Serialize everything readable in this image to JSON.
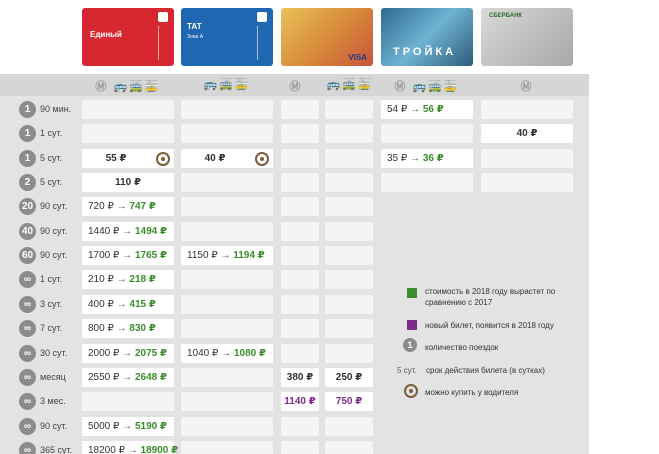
{
  "cards": [
    {
      "name": "Единый",
      "color": "#d62830"
    },
    {
      "name": "ТАТ",
      "sub": "Зона А",
      "color": "#1f67b1"
    },
    {
      "name": "VISA",
      "color": "#e4b23a"
    },
    {
      "name": "ТРОЙКА",
      "color": "#4a8fbf"
    },
    {
      "name": "СБЕРБАНК",
      "color": "#bdbdbd"
    }
  ],
  "header": {
    "col1": "Ⓜ 🚌🚎🚋",
    "col2": "🚌🚎🚋",
    "col3": "Ⓜ",
    "col4": "🚌🚎🚋",
    "col5": "Ⓜ 🚌🚎🚋",
    "col6": "Ⓜ"
  },
  "rows": [
    {
      "trips": "1",
      "period": "90 мин.",
      "c5_old": "54 ₽",
      "c5_new": "56 ₽"
    },
    {
      "trips": "1",
      "period": "1 сут.",
      "c6": "40 ₽"
    },
    {
      "trips": "1",
      "period": "5 сут.",
      "c1": "55 ₽",
      "c2": "40 ₽",
      "c5_old": "35 ₽",
      "c5_new": "36 ₽"
    },
    {
      "trips": "2",
      "period": "5 сут.",
      "c1": "110 ₽"
    },
    {
      "trips": "20",
      "period": "90 сут.",
      "c1_old": "720 ₽",
      "c1_new": "747 ₽"
    },
    {
      "trips": "40",
      "period": "90 сут.",
      "c1_old": "1440 ₽",
      "c1_new": "1494 ₽"
    },
    {
      "trips": "60",
      "period": "90 сут.",
      "c1_old": "1700 ₽",
      "c1_new": "1765 ₽",
      "c2_old": "1150 ₽",
      "c2_new": "1194 ₽"
    },
    {
      "trips": "∞",
      "period": "1 сут.",
      "c1_old": "210 ₽",
      "c1_new": "218 ₽"
    },
    {
      "trips": "∞",
      "period": "3 сут.",
      "c1_old": "400 ₽",
      "c1_new": "415 ₽"
    },
    {
      "trips": "∞",
      "period": "7 сут.",
      "c1_old": "800 ₽",
      "c1_new": "830 ₽"
    },
    {
      "trips": "∞",
      "period": "30 сут.",
      "c1_old": "2000 ₽",
      "c1_new": "2075 ₽",
      "c2_old": "1040 ₽",
      "c2_new": "1080 ₽"
    },
    {
      "trips": "∞",
      "period": "месяц",
      "c1_old": "2550 ₽",
      "c1_new": "2648 ₽",
      "c3": "380 ₽",
      "c4": "250 ₽"
    },
    {
      "trips": "∞",
      "period": "3 мес.",
      "c3": "1140 ₽",
      "c4": "750 ₽"
    },
    {
      "trips": "∞",
      "period": "90 сут.",
      "c1_old": "5000 ₽",
      "c1_new": "5190 ₽"
    },
    {
      "trips": "∞",
      "period": "365 сут.",
      "c1_old": "18200 ₽",
      "c1_new": "18900 ₽"
    }
  ],
  "arrow": "→",
  "legend": {
    "green_text": "стоимость в 2018 году вырастет по сравнению с 2017",
    "purple_text": "новый билет, появится в 2018 году",
    "badge_sample": "1",
    "trips_text": "количество поездок",
    "period_sample": "5 сут.",
    "period_text": "срок действия билета (в сутках)",
    "driver_text": "можно купить у водителя",
    "green_color": "#3a8d2b",
    "purple_color": "#7e2a8a"
  }
}
